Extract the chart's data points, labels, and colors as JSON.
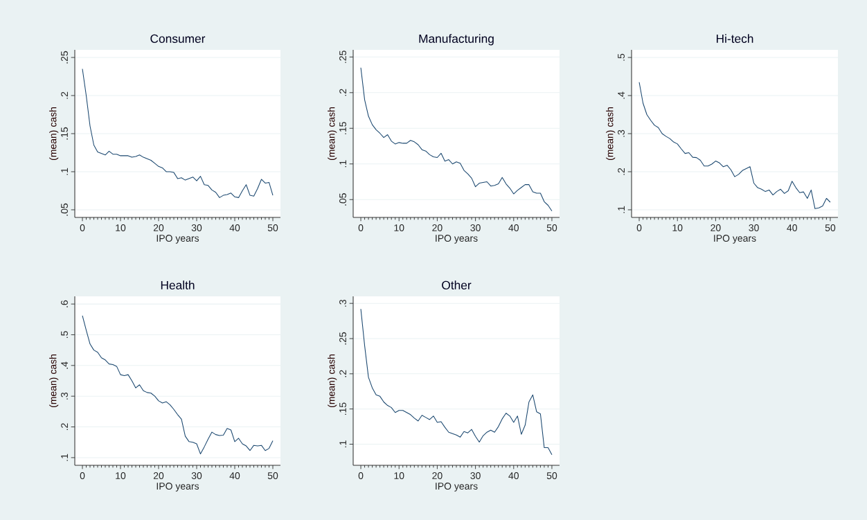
{
  "chart_data": [
    {
      "type": "line",
      "title": "Consumer",
      "xlabel": "IPO years",
      "ylabel": "(mean) cash",
      "color": "#1a476f",
      "grid": "y",
      "x": [
        0,
        1,
        2,
        3,
        4,
        5,
        6,
        7,
        8,
        9,
        10,
        11,
        12,
        13,
        14,
        15,
        16,
        17,
        18,
        19,
        20,
        21,
        22,
        23,
        24,
        25,
        26,
        27,
        28,
        29,
        30,
        31,
        32,
        33,
        34,
        35,
        36,
        37,
        38,
        39,
        40,
        41,
        42,
        43,
        44,
        45,
        46,
        47,
        48,
        49,
        50
      ],
      "values": [
        0.235,
        0.2,
        0.16,
        0.135,
        0.126,
        0.124,
        0.122,
        0.127,
        0.123,
        0.123,
        0.121,
        0.121,
        0.121,
        0.119,
        0.12,
        0.122,
        0.119,
        0.117,
        0.115,
        0.111,
        0.107,
        0.105,
        0.1,
        0.1,
        0.099,
        0.091,
        0.092,
        0.089,
        0.091,
        0.093,
        0.088,
        0.094,
        0.083,
        0.082,
        0.076,
        0.073,
        0.066,
        0.069,
        0.07,
        0.072,
        0.067,
        0.066,
        0.075,
        0.083,
        0.069,
        0.068,
        0.078,
        0.09,
        0.085,
        0.086,
        0.069
      ],
      "xlim": [
        -2,
        52
      ],
      "xticks": [
        0,
        10,
        20,
        30,
        40,
        50
      ],
      "ylim": [
        0.04,
        0.26
      ],
      "yticks": [
        {
          "value": 0.05,
          "label": ".05"
        },
        {
          "value": 0.1,
          "label": ".1"
        },
        {
          "value": 0.15,
          "label": ".15"
        },
        {
          "value": 0.2,
          "label": ".2"
        },
        {
          "value": 0.25,
          "label": ".25"
        }
      ]
    },
    {
      "type": "line",
      "title": "Manufacturing",
      "xlabel": "IPO years",
      "ylabel": "(mean) cash",
      "color": "#1a476f",
      "grid": "y",
      "x": [
        0,
        1,
        2,
        3,
        4,
        5,
        6,
        7,
        8,
        9,
        10,
        11,
        12,
        13,
        14,
        15,
        16,
        17,
        18,
        19,
        20,
        21,
        22,
        23,
        24,
        25,
        26,
        27,
        28,
        29,
        30,
        31,
        32,
        33,
        34,
        35,
        36,
        37,
        38,
        39,
        40,
        41,
        42,
        43,
        44,
        45,
        46,
        47,
        48,
        49,
        50
      ],
      "values": [
        0.235,
        0.19,
        0.167,
        0.155,
        0.148,
        0.143,
        0.137,
        0.141,
        0.132,
        0.128,
        0.13,
        0.129,
        0.129,
        0.133,
        0.131,
        0.127,
        0.12,
        0.118,
        0.113,
        0.11,
        0.109,
        0.115,
        0.104,
        0.106,
        0.1,
        0.103,
        0.101,
        0.091,
        0.086,
        0.08,
        0.068,
        0.073,
        0.074,
        0.075,
        0.069,
        0.07,
        0.072,
        0.081,
        0.072,
        0.066,
        0.058,
        0.063,
        0.067,
        0.071,
        0.071,
        0.061,
        0.059,
        0.059,
        0.047,
        0.042,
        0.034
      ],
      "xlim": [
        -2,
        52
      ],
      "xticks": [
        0,
        10,
        20,
        30,
        40,
        50
      ],
      "ylim": [
        0.025,
        0.26
      ],
      "yticks": [
        {
          "value": 0.05,
          "label": ".05"
        },
        {
          "value": 0.1,
          "label": ".1"
        },
        {
          "value": 0.15,
          "label": ".15"
        },
        {
          "value": 0.2,
          "label": ".2"
        },
        {
          "value": 0.25,
          "label": ".25"
        }
      ]
    },
    {
      "type": "line",
      "title": "Hi-tech",
      "xlabel": "IPO years",
      "ylabel": "(mean) cash",
      "color": "#1a476f",
      "grid": "y",
      "x": [
        0,
        1,
        2,
        3,
        4,
        5,
        6,
        7,
        8,
        9,
        10,
        11,
        12,
        13,
        14,
        15,
        16,
        17,
        18,
        19,
        20,
        21,
        22,
        23,
        24,
        25,
        26,
        27,
        28,
        29,
        30,
        31,
        32,
        33,
        34,
        35,
        36,
        37,
        38,
        39,
        40,
        41,
        42,
        43,
        44,
        45,
        46,
        47,
        48,
        49,
        50
      ],
      "values": [
        0.435,
        0.38,
        0.35,
        0.335,
        0.322,
        0.316,
        0.3,
        0.293,
        0.287,
        0.278,
        0.273,
        0.26,
        0.248,
        0.25,
        0.238,
        0.237,
        0.23,
        0.215,
        0.215,
        0.22,
        0.228,
        0.223,
        0.213,
        0.217,
        0.205,
        0.187,
        0.193,
        0.203,
        0.208,
        0.213,
        0.17,
        0.158,
        0.154,
        0.148,
        0.152,
        0.139,
        0.148,
        0.154,
        0.143,
        0.15,
        0.175,
        0.158,
        0.145,
        0.147,
        0.13,
        0.152,
        0.103,
        0.105,
        0.11,
        0.13,
        0.12
      ],
      "xlim": [
        -2,
        52
      ],
      "xticks": [
        0,
        10,
        20,
        30,
        40,
        50
      ],
      "ylim": [
        0.08,
        0.52
      ],
      "yticks": [
        {
          "value": 0.1,
          "label": ".1"
        },
        {
          "value": 0.2,
          "label": ".2"
        },
        {
          "value": 0.3,
          "label": ".3"
        },
        {
          "value": 0.4,
          "label": ".4"
        },
        {
          "value": 0.5,
          "label": ".5"
        }
      ]
    },
    {
      "type": "line",
      "title": "Health",
      "xlabel": "IPO years",
      "ylabel": "(mean) cash",
      "color": "#1a476f",
      "grid": "y",
      "x": [
        0,
        1,
        2,
        3,
        4,
        5,
        6,
        7,
        8,
        9,
        10,
        11,
        12,
        13,
        14,
        15,
        16,
        17,
        18,
        19,
        20,
        21,
        22,
        23,
        24,
        25,
        26,
        27,
        28,
        29,
        30,
        31,
        32,
        33,
        34,
        35,
        36,
        37,
        38,
        39,
        40,
        41,
        42,
        43,
        44,
        45,
        46,
        47,
        48,
        49,
        50
      ],
      "values": [
        0.562,
        0.515,
        0.47,
        0.45,
        0.443,
        0.425,
        0.418,
        0.405,
        0.403,
        0.397,
        0.37,
        0.367,
        0.37,
        0.35,
        0.327,
        0.337,
        0.318,
        0.312,
        0.31,
        0.3,
        0.285,
        0.278,
        0.282,
        0.272,
        0.257,
        0.24,
        0.225,
        0.17,
        0.152,
        0.15,
        0.145,
        0.112,
        0.135,
        0.16,
        0.183,
        0.175,
        0.172,
        0.173,
        0.195,
        0.19,
        0.152,
        0.163,
        0.145,
        0.138,
        0.123,
        0.14,
        0.138,
        0.14,
        0.123,
        0.13,
        0.155
      ],
      "xlim": [
        -2,
        52
      ],
      "xticks": [
        0,
        10,
        20,
        30,
        40,
        50
      ],
      "ylim": [
        0.075,
        0.625
      ],
      "yticks": [
        {
          "value": 0.1,
          "label": ".1"
        },
        {
          "value": 0.2,
          "label": ".2"
        },
        {
          "value": 0.3,
          "label": ".3"
        },
        {
          "value": 0.4,
          "label": ".4"
        },
        {
          "value": 0.5,
          "label": ".5"
        },
        {
          "value": 0.6,
          "label": ".6"
        }
      ]
    },
    {
      "type": "line",
      "title": "Other",
      "xlabel": "IPO years",
      "ylabel": "(mean) cash",
      "color": "#1a476f",
      "grid": "y",
      "x": [
        0,
        1,
        2,
        3,
        4,
        5,
        6,
        7,
        8,
        9,
        10,
        11,
        12,
        13,
        14,
        15,
        16,
        17,
        18,
        19,
        20,
        21,
        22,
        23,
        24,
        25,
        26,
        27,
        28,
        29,
        30,
        31,
        32,
        33,
        34,
        35,
        36,
        37,
        38,
        39,
        40,
        41,
        42,
        43,
        44,
        45,
        46,
        47,
        48,
        49,
        50
      ],
      "values": [
        0.292,
        0.24,
        0.195,
        0.18,
        0.17,
        0.168,
        0.16,
        0.155,
        0.152,
        0.145,
        0.148,
        0.148,
        0.145,
        0.142,
        0.137,
        0.133,
        0.141,
        0.138,
        0.135,
        0.14,
        0.131,
        0.132,
        0.124,
        0.117,
        0.115,
        0.113,
        0.11,
        0.118,
        0.116,
        0.121,
        0.111,
        0.103,
        0.112,
        0.117,
        0.12,
        0.117,
        0.125,
        0.136,
        0.144,
        0.14,
        0.131,
        0.14,
        0.114,
        0.127,
        0.16,
        0.17,
        0.146,
        0.143,
        0.095,
        0.095,
        0.085
      ],
      "xlim": [
        -2,
        52
      ],
      "xticks": [
        0,
        10,
        20,
        30,
        40,
        50
      ],
      "ylim": [
        0.07,
        0.31
      ],
      "yticks": [
        {
          "value": 0.1,
          "label": ".1"
        },
        {
          "value": 0.15,
          "label": ".15"
        },
        {
          "value": 0.2,
          "label": ".2"
        },
        {
          "value": 0.25,
          "label": ".25"
        },
        {
          "value": 0.3,
          "label": ".3"
        }
      ]
    }
  ]
}
